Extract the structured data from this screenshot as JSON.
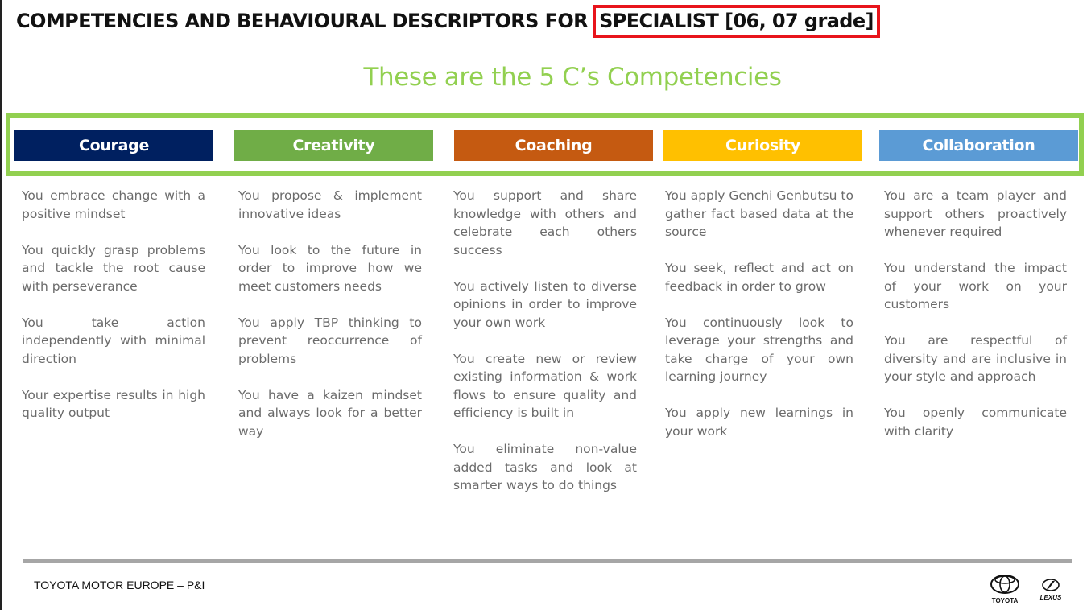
{
  "title": {
    "prefix": "COMPETENCIES AND BEHAVIOURAL DESCRIPTORS FOR",
    "highlight": "SPECIALIST [06, 07 grade]"
  },
  "subtitle": "These are the 5 C’s Competencies",
  "colors": {
    "highlight_box": "#e8141b",
    "accent_green": "#92d050",
    "courage": "#002060",
    "creativity": "#70ad47",
    "coaching": "#c55a11",
    "curiosity": "#ffc000",
    "collaboration": "#5b9bd5",
    "body_text": "#6b6b6b"
  },
  "competencies": [
    {
      "name": "Courage",
      "descriptors": [
        "You embrace change with a positive mindset",
        "You quickly grasp problems and tackle the root cause with perseverance",
        "You take action independently with minimal direction",
        "Your expertise results in high quality output"
      ]
    },
    {
      "name": "Creativity",
      "descriptors": [
        "You propose & implement innovative ideas",
        "You look to the future in order to improve how we meet customers needs",
        "You apply TBP thinking to prevent reoccurrence of problems",
        "You have a kaizen mindset and always look for a better way"
      ]
    },
    {
      "name": "Coaching",
      "descriptors": [
        "You support and share knowledge with others and celebrate each others success",
        "You actively listen to diverse opinions in order to improve your own work",
        "You create new or review existing information & work flows to ensure quality and efficiency is built in",
        "You eliminate non-value added tasks and look at smarter ways to do things"
      ]
    },
    {
      "name": "Curiosity",
      "descriptors": [
        "You apply Genchi Genbutsu to gather fact based data at the source",
        "You seek, reflect and act on feedback in order to grow",
        "You continuously look to leverage your strengths and take charge of your own learning journey",
        "You apply new learnings in your work"
      ]
    },
    {
      "name": "Collaboration",
      "descriptors": [
        "You are a team player and support others proactively whenever required",
        "You understand the impact of your work on your customers",
        "You are respectful of diversity and are inclusive in your style and approach",
        "You openly communicate with clarity"
      ]
    }
  ],
  "footer": {
    "text": "TOYOTA MOTOR EUROPE – P&I",
    "logos": [
      {
        "icon": "toyota-logo-icon",
        "label": "TOYOTA"
      },
      {
        "icon": "lexus-logo-icon",
        "label": "LEXUS"
      }
    ]
  }
}
